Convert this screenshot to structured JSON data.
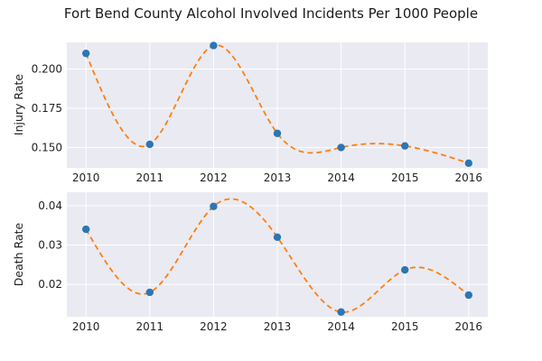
{
  "chart_data": [
    {
      "type": "scatter",
      "title": "Fort Bend County Alcohol Involved Incidents Per 1000 People",
      "xlabel": "",
      "ylabel": "Injury Rate",
      "x": [
        2010,
        2011,
        2012,
        2013,
        2014,
        2015,
        2016
      ],
      "series": [
        {
          "values": [
            0.21,
            0.152,
            0.215,
            0.159,
            0.15,
            0.151,
            0.14
          ]
        }
      ],
      "curve": "smooth interpolating spline (dashed)",
      "xlim": [
        2009.7,
        2016.3
      ],
      "ylim": [
        0.137,
        0.217
      ],
      "yticks": [
        "0.150",
        "0.175",
        "0.200"
      ],
      "xticks": [
        "2010",
        "2011",
        "2012",
        "2013",
        "2014",
        "2015",
        "2016"
      ],
      "grid": true,
      "marker_color": "#2a77b4",
      "line_color": "#ff7f0e",
      "background": "#eaeaf2"
    },
    {
      "type": "scatter",
      "xlabel": "",
      "ylabel": "Death Rate",
      "x": [
        2010,
        2011,
        2012,
        2013,
        2014,
        2015,
        2016
      ],
      "series": [
        {
          "values": [
            0.034,
            0.018,
            0.0398,
            0.032,
            0.013,
            0.0237,
            0.0173
          ]
        }
      ],
      "curve": "smooth interpolating spline (dashed)",
      "xlim": [
        2009.7,
        2016.3
      ],
      "ylim": [
        0.0118,
        0.0434
      ],
      "yticks": [
        "0.02",
        "0.03",
        "0.04"
      ],
      "xticks": [
        "2010",
        "2011",
        "2012",
        "2013",
        "2014",
        "2015",
        "2016"
      ],
      "grid": true,
      "marker_color": "#2a77b4",
      "line_color": "#ff7f0e",
      "background": "#eaeaf2"
    }
  ]
}
